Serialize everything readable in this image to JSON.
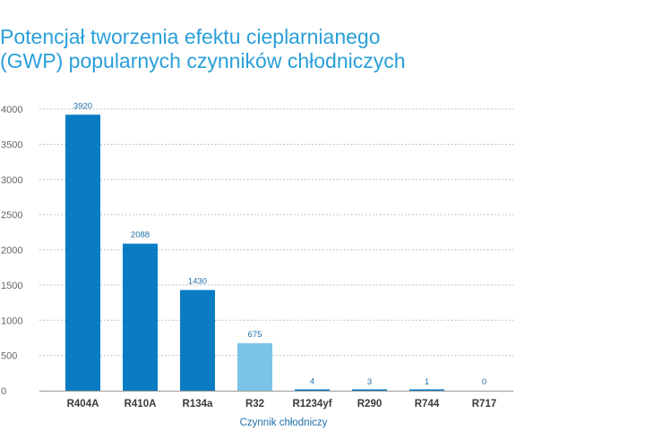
{
  "chart_data": {
    "type": "bar",
    "title": "Potencjał tworzenia efektu cieplarnianego (GWP) popularnych czynników chłodniczych",
    "xlabel": "Czynnik chłodniczy",
    "ylabel": "",
    "categories": [
      "R404A",
      "R410A",
      "R134a",
      "R32",
      "R1234yf",
      "R290",
      "R744",
      "R717"
    ],
    "values": [
      3920,
      2088,
      1430,
      675,
      4,
      3,
      1,
      0
    ],
    "data_labels": [
      "3920",
      "2088",
      "1430",
      "675",
      "4",
      "3",
      "1",
      "0"
    ],
    "ylim": [
      0,
      4000
    ],
    "yticks": [
      0,
      500,
      1000,
      1500,
      2000,
      2500,
      3000,
      3500,
      4000
    ],
    "grid": true,
    "legend": "none",
    "colors": {
      "bar": "#0a7cc4",
      "bar_highlight": "#7cc3e8",
      "title": "#2a9fd8",
      "data_label": "#1f6fa8",
      "axis_text": "#666666",
      "category_text": "#3a3a3a",
      "grid": "#b0b0b0"
    },
    "highlight_categories": [
      "R32"
    ]
  }
}
